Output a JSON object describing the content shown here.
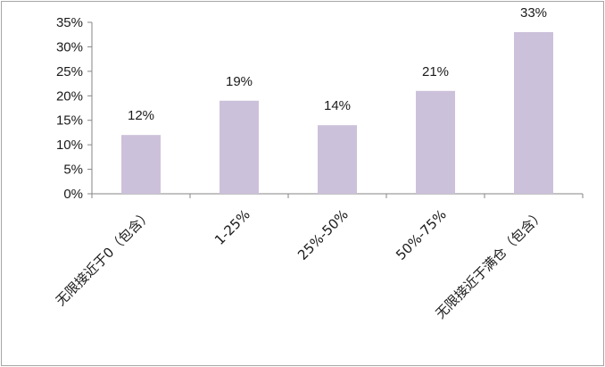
{
  "chart_data": {
    "type": "bar",
    "categories": [
      "无限接近于0（包含）",
      "1-25%",
      "25%-50%",
      "50%-75%",
      "无限接近于满仓（包含）"
    ],
    "values": [
      12,
      19,
      14,
      21,
      33
    ],
    "value_labels": [
      "12%",
      "19%",
      "14%",
      "21%",
      "33%"
    ],
    "ylim": [
      0,
      35
    ],
    "yticks": [
      0,
      5,
      10,
      15,
      20,
      25,
      30,
      35
    ],
    "ytick_labels": [
      "0%",
      "5%",
      "10%",
      "15%",
      "20%",
      "25%",
      "30%",
      "35%"
    ],
    "grid": false,
    "legend": "none",
    "colors": {
      "bar": "#ccc1da",
      "axis": "#868686"
    }
  }
}
